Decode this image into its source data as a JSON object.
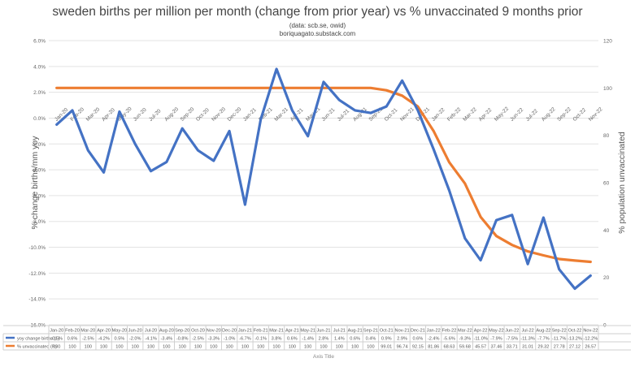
{
  "chart_data": {
    "type": "line",
    "title": "sweden births per million per month (change from prior year) vs % unvaccinated 9 months prior",
    "subtitle": "(data: scb.se, owid)",
    "source": "boriquagato.substack.com",
    "ylabel_left": "% change births/mm yoy",
    "ylabel_right": "% population unvaccinated",
    "xlabel": "Axis Title",
    "ylim_left": [
      -16,
      6
    ],
    "yticks_left": [
      "6.0%",
      "4.0%",
      "2.0%",
      "0.0%",
      "-2.0%",
      "-4.0%",
      "-6.0%",
      "-8.0%",
      "-10.0%",
      "-12.0%",
      "-14.0%",
      "-16.0%"
    ],
    "ylim_right": [
      0,
      120
    ],
    "yticks_right": [
      "120",
      "100",
      "80",
      "60",
      "40",
      "20",
      "0"
    ],
    "grid": true,
    "legend": "table-bottom-left",
    "categories": [
      "Jan-20",
      "Feb-20",
      "Mar-20",
      "Apr-20",
      "May-20",
      "Jun-20",
      "Jul-20",
      "Aug-20",
      "Sep-20",
      "Oct-20",
      "Nov-20",
      "Dec-20",
      "Jan-21",
      "Feb-21",
      "Mar-21",
      "Apr-21",
      "May-21",
      "Jun-21",
      "Jul-21",
      "Aug-21",
      "Sep-21",
      "Oct-21",
      "Nov-21",
      "Dec-21",
      "Jan-22",
      "Feb-22",
      "Mar-22",
      "Apr-22",
      "May-22",
      "Jun-22",
      "Jul-22",
      "Aug-22",
      "Sep-22",
      "Oct-22",
      "Nov-22"
    ],
    "series": [
      {
        "name": "yoy change births (L)",
        "color": "#4472C4",
        "axis": "left",
        "values": [
          -0.5,
          0.6,
          -2.5,
          -4.2,
          0.5,
          -2.0,
          -4.1,
          -3.4,
          -0.8,
          -2.5,
          -3.3,
          -1.0,
          -6.7,
          -0.1,
          3.8,
          0.6,
          -1.4,
          2.8,
          1.4,
          0.6,
          0.4,
          0.9,
          2.9,
          0.6,
          -2.4,
          -5.6,
          -9.3,
          -11.0,
          -7.9,
          -7.5,
          -11.3,
          -7.7,
          -11.7,
          -13.2,
          -12.2
        ],
        "labels": [
          "-0.5%",
          "0.6%",
          "-2.5%",
          "-4.2%",
          "0.5%",
          "-2.0%",
          "-4.1%",
          "-3.4%",
          "-0.8%",
          "-2.5%",
          "-3.3%",
          "-1.0%",
          "-6.7%",
          "-0.1%",
          "3.8%",
          "0.6%",
          "-1.4%",
          "2.8%",
          "1.4%",
          "0.6%",
          "0.4%",
          "0.9%",
          "2.9%",
          "0.6%",
          "-2.4%",
          "-5.6%",
          "-9.3%",
          "-11.0%",
          "-7.9%",
          "-7.5%",
          "-11.3%",
          "-7.7%",
          "-11.7%",
          "-13.2%",
          "-12.2%"
        ]
      },
      {
        "name": "% unvaccinated (R)",
        "color": "#ED7D31",
        "axis": "right",
        "values": [
          100,
          100,
          100,
          100,
          100,
          100,
          100,
          100,
          100,
          100,
          100,
          100,
          100,
          100,
          100,
          100,
          100,
          100,
          100,
          100,
          100,
          99.01,
          96.74,
          92.15,
          81.86,
          68.63,
          59.68,
          45.57,
          37.46,
          33.71,
          31.01,
          29.32,
          27.78,
          27.12,
          26.57
        ],
        "labels": [
          "100",
          "100",
          "100",
          "100",
          "100",
          "100",
          "100",
          "100",
          "100",
          "100",
          "100",
          "100",
          "100",
          "100",
          "100",
          "100",
          "100",
          "100",
          "100",
          "100",
          "100",
          "99.01",
          "96.74",
          "92.15",
          "81.86",
          "68.63",
          "59.68",
          "45.57",
          "37.46",
          "33.71",
          "31.01",
          "29.32",
          "27.78",
          "27.12",
          "26.57"
        ]
      }
    ]
  }
}
